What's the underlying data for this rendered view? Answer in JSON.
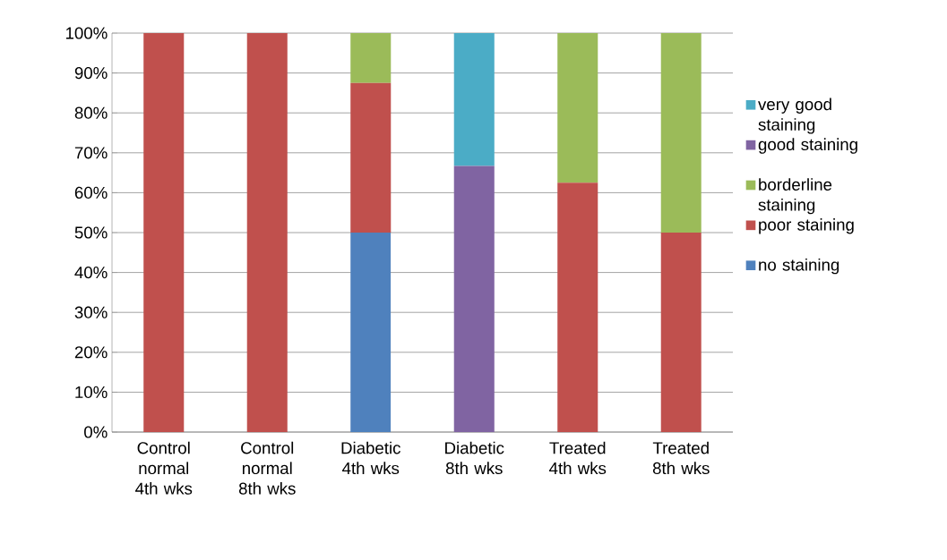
{
  "chart_data": {
    "type": "bar",
    "stacked": true,
    "categories": [
      "Control normal 4th wks",
      "Control normal 8th wks",
      "Diabetic 4th wks",
      "Diabetic 8th wks",
      "Treated 4th wks",
      "Treated 8th wks"
    ],
    "series": [
      {
        "name": "no staining",
        "color": "#4f81bd",
        "values": [
          0,
          0,
          50,
          0,
          0,
          0
        ]
      },
      {
        "name": "poor staining",
        "color": "#c0504d",
        "values": [
          100,
          100,
          37.5,
          0,
          62.5,
          50
        ]
      },
      {
        "name": "borderline staining",
        "color": "#9bbb59",
        "values": [
          0,
          0,
          12.5,
          0,
          37.5,
          50
        ]
      },
      {
        "name": "good staining",
        "color": "#8064a2",
        "values": [
          0,
          0,
          0,
          66.7,
          0,
          0
        ]
      },
      {
        "name": "very good staining",
        "color": "#4bacc6",
        "values": [
          0,
          0,
          0,
          33.3,
          0,
          0
        ]
      }
    ],
    "ylim": [
      0,
      100
    ],
    "yticks": [
      {
        "value": 0,
        "label": "0%"
      },
      {
        "value": 10,
        "label": "10%"
      },
      {
        "value": 20,
        "label": "20%"
      },
      {
        "value": 30,
        "label": "30%"
      },
      {
        "value": 40,
        "label": "40%"
      },
      {
        "value": 50,
        "label": "50%"
      },
      {
        "value": 60,
        "label": "60%"
      },
      {
        "value": 70,
        "label": "70%"
      },
      {
        "value": 80,
        "label": "80%"
      },
      {
        "value": 90,
        "label": "90%"
      },
      {
        "value": 100,
        "label": "100%"
      }
    ],
    "grid": "y",
    "legend": "right"
  }
}
